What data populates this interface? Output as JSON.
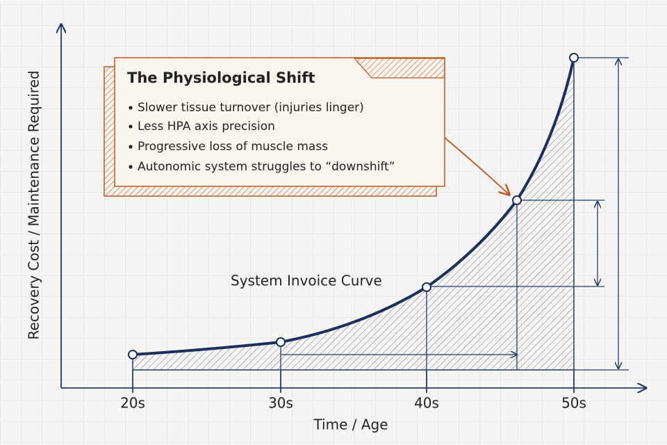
{
  "callout": {
    "title": "The Physiological Shift",
    "items": [
      "Slower tissue turnover (injuries linger)",
      "Less HPA axis precision",
      "Progressive loss of muscle mass",
      "Autonomic system struggles to “downshift”"
    ]
  },
  "curve_label": "System Invoice Curve",
  "x_axis": {
    "label": "Time / Age",
    "categories": [
      "20s",
      "30s",
      "40s",
      "50s"
    ]
  },
  "y_axis": {
    "label": "Recovery Cost / Maintenance Required"
  }
}
